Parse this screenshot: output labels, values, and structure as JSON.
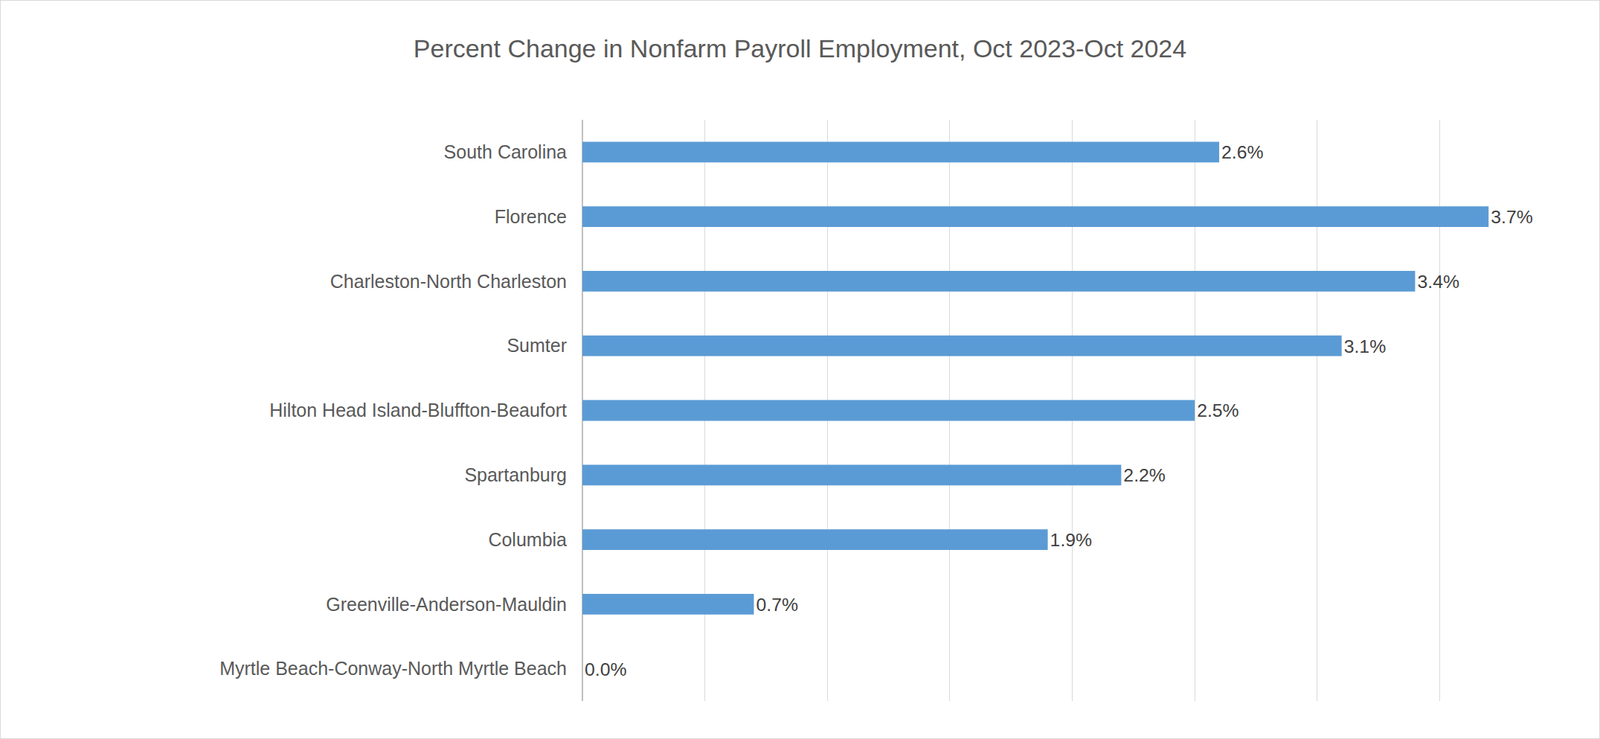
{
  "chart_data": {
    "type": "bar",
    "orientation": "horizontal",
    "title": "Percent Change in Nonfarm Payroll Employment, Oct 2023-Oct 2024",
    "categories": [
      "South Carolina",
      "Florence",
      "Charleston-North Charleston",
      "Sumter",
      "Hilton Head Island-Bluffton-Beaufort",
      "Spartanburg",
      "Columbia",
      "Greenville-Anderson-Mauldin",
      "Myrtle Beach-Conway-North Myrtle Beach"
    ],
    "values": [
      2.6,
      3.7,
      3.4,
      3.1,
      2.5,
      2.2,
      1.9,
      0.7,
      0.0
    ],
    "value_labels": [
      "2.6%",
      "3.7%",
      "3.4%",
      "3.1%",
      "2.5%",
      "2.2%",
      "1.9%",
      "0.7%",
      "0.0%"
    ],
    "color": "#5b9bd5",
    "xlim": [
      0,
      4
    ],
    "xticks": [
      0,
      0.5,
      1,
      1.5,
      2,
      2.5,
      3,
      3.5,
      4
    ],
    "grid": true,
    "data_labels": true,
    "tick_labels": "y"
  }
}
